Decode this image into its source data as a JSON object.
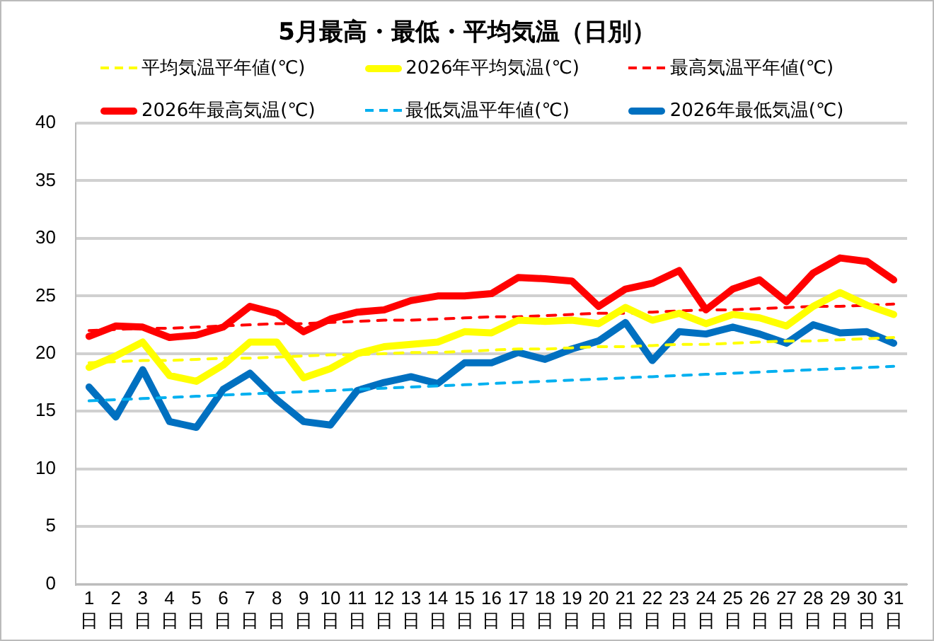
{
  "chart_data": {
    "type": "line",
    "title": "5月最高・最低・平均気温（日別）",
    "categories": [
      "1日",
      "2日",
      "3日",
      "4日",
      "5日",
      "6日",
      "7日",
      "8日",
      "9日",
      "10日",
      "11日",
      "12日",
      "13日",
      "14日",
      "15日",
      "16日",
      "17日",
      "18日",
      "19日",
      "20日",
      "21日",
      "22日",
      "23日",
      "24日",
      "25日",
      "26日",
      "27日",
      "28日",
      "29日",
      "30日",
      "31日"
    ],
    "series": [
      {
        "name": "平均気温平年値(℃)",
        "color": "#ffff00",
        "line_style": "dashed",
        "values": [
          19.2,
          19.3,
          19.4,
          19.4,
          19.5,
          19.6,
          19.6,
          19.7,
          19.8,
          19.9,
          19.9,
          20.0,
          20.1,
          20.1,
          20.2,
          20.3,
          20.4,
          20.4,
          20.5,
          20.6,
          20.6,
          20.7,
          20.8,
          20.8,
          20.9,
          21.0,
          21.1,
          21.1,
          21.2,
          21.3,
          21.4
        ]
      },
      {
        "name": "2026年平均気温(℃)",
        "color": "#ffff00",
        "line_style": "solid",
        "values": [
          18.8,
          19.8,
          21.0,
          18.1,
          17.6,
          19.0,
          21.0,
          21.0,
          17.9,
          18.7,
          20.0,
          20.6,
          20.8,
          21.0,
          21.9,
          21.8,
          22.9,
          22.8,
          22.9,
          22.6,
          24.0,
          22.9,
          23.5,
          22.6,
          23.4,
          23.1,
          22.4,
          24.1,
          25.3,
          24.2,
          23.4
        ]
      },
      {
        "name": "最高気温平年値(℃)",
        "color": "#ff0000",
        "line_style": "dashed",
        "values": [
          22.0,
          22.1,
          22.2,
          22.2,
          22.3,
          22.4,
          22.5,
          22.6,
          22.6,
          22.7,
          22.8,
          22.9,
          22.9,
          23.0,
          23.1,
          23.2,
          23.2,
          23.3,
          23.4,
          23.5,
          23.5,
          23.6,
          23.7,
          23.8,
          23.8,
          23.9,
          24.0,
          24.1,
          24.1,
          24.2,
          24.3
        ]
      },
      {
        "name": "2026年最高気温(℃)",
        "color": "#ff0000",
        "line_style": "solid",
        "values": [
          21.5,
          22.4,
          22.3,
          21.4,
          21.6,
          22.3,
          24.1,
          23.5,
          21.9,
          23.0,
          23.6,
          23.8,
          24.6,
          25.0,
          25.0,
          25.2,
          26.6,
          26.5,
          26.3,
          24.1,
          25.6,
          26.1,
          27.2,
          23.8,
          25.6,
          26.4,
          24.5,
          27.0,
          28.3,
          28.0,
          26.4
        ]
      },
      {
        "name": "最低気温平年値(℃)",
        "color": "#00b0f0",
        "line_style": "dashed",
        "values": [
          15.9,
          16.0,
          16.1,
          16.2,
          16.3,
          16.4,
          16.5,
          16.6,
          16.7,
          16.8,
          16.9,
          17.0,
          17.1,
          17.2,
          17.3,
          17.4,
          17.5,
          17.6,
          17.7,
          17.8,
          17.9,
          18.0,
          18.1,
          18.2,
          18.3,
          18.4,
          18.5,
          18.6,
          18.7,
          18.8,
          18.9
        ]
      },
      {
        "name": "2026年最低気温(℃)",
        "color": "#0070c0",
        "line_style": "solid",
        "values": [
          17.1,
          14.5,
          18.6,
          14.1,
          13.6,
          16.9,
          18.3,
          16.0,
          14.1,
          13.8,
          16.8,
          17.5,
          18.0,
          17.4,
          19.2,
          19.2,
          20.1,
          19.5,
          20.4,
          21.1,
          22.7,
          19.4,
          21.9,
          21.7,
          22.3,
          21.7,
          20.9,
          22.5,
          21.8,
          21.9,
          20.9
        ]
      }
    ],
    "ylim": [
      0,
      40
    ],
    "yticks": [
      0,
      5,
      10,
      15,
      20,
      25,
      30,
      35,
      40
    ],
    "grid": "y",
    "legend": "top",
    "marker": "none"
  }
}
